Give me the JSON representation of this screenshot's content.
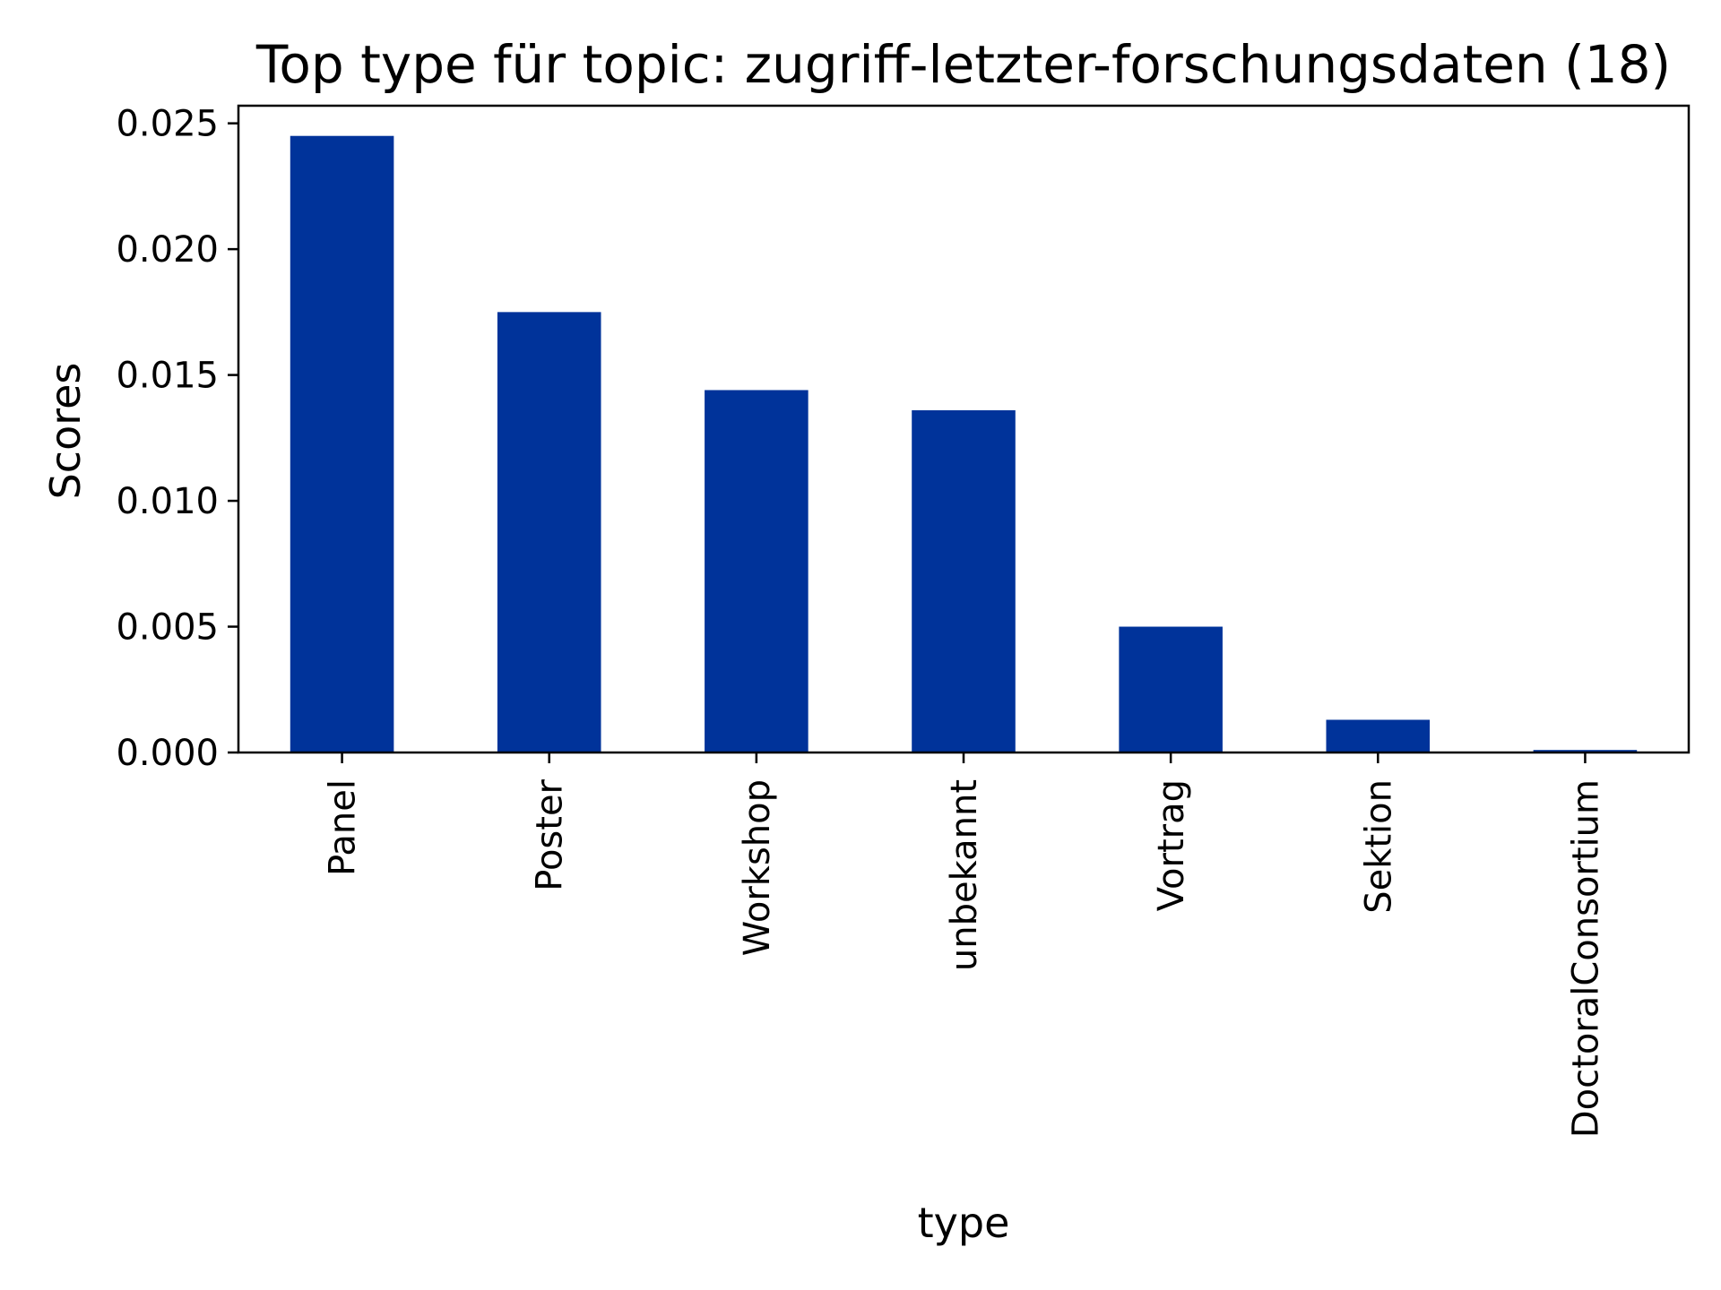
{
  "chart_data": {
    "type": "bar",
    "title": "Top type für topic: zugriff-letzter-forschungsdaten (18)",
    "xlabel": "type",
    "ylabel": "Scores",
    "categories": [
      "Panel",
      "Poster",
      "Workshop",
      "unbekannt",
      "Vortrag",
      "Sektion",
      "DoctoralConsortium"
    ],
    "values": [
      0.0245,
      0.0175,
      0.0144,
      0.0136,
      0.005,
      0.0013,
      0.0001
    ],
    "ylim": [
      0,
      0.0257
    ],
    "yticks": [
      "0.000",
      "0.005",
      "0.010",
      "0.015",
      "0.020",
      "0.025"
    ],
    "bar_color": "#00339a",
    "grid": false,
    "legend": "none"
  }
}
